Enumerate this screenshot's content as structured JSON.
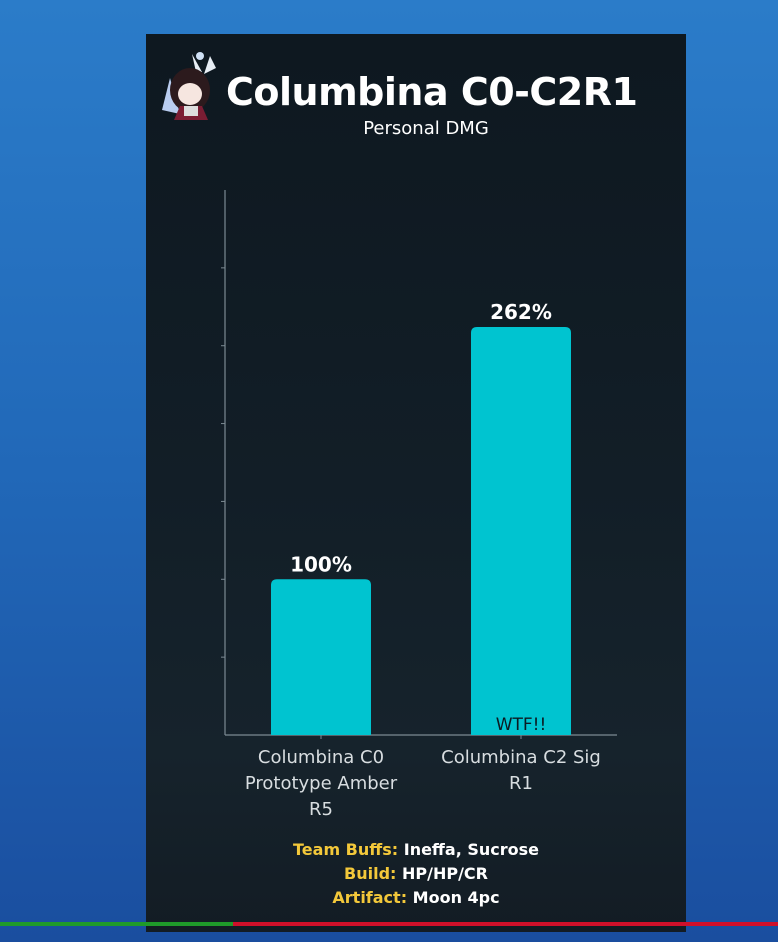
{
  "header": {
    "title": "Columbina C0-C2R1",
    "subtitle": "Personal DMG",
    "avatar_icon": "chibi-character-avatar"
  },
  "chart_data": {
    "type": "bar",
    "title": "Columbina C0-C2R1",
    "subtitle": "Personal DMG",
    "categories": [
      "Columbina C0 Prototype Amber R5",
      "Columbina C2 Sig R1"
    ],
    "category_lines": [
      [
        "Columbina C0",
        "Prototype Amber",
        "R5"
      ],
      [
        "Columbina C2 Sig",
        "R1"
      ]
    ],
    "values": [
      100,
      262
    ],
    "data_labels": [
      "100%",
      "262%"
    ],
    "annotations": [
      "WTF!!"
    ],
    "ylim": [
      0,
      350
    ],
    "ytick_step": 50,
    "ytick_labels": false,
    "grid": false,
    "bar_color": "#00c4d0",
    "xlabel": "",
    "ylabel": ""
  },
  "info": {
    "team_buffs_label": "Team Buffs:",
    "team_buffs_value": "Ineffa, Sucrose",
    "build_label": "Build:",
    "build_value": "HP/HP/CR",
    "artifact_label": "Artifact:",
    "artifact_value": "Moon 4pc"
  },
  "colors": {
    "background": "#2168b8",
    "panel": "#121e27",
    "accent": "#00c4d0",
    "label_yellow": "#f3c83a",
    "progress_played": "#1f9a2a",
    "progress_remaining": "#d0102a"
  },
  "video_progress": 0.3
}
